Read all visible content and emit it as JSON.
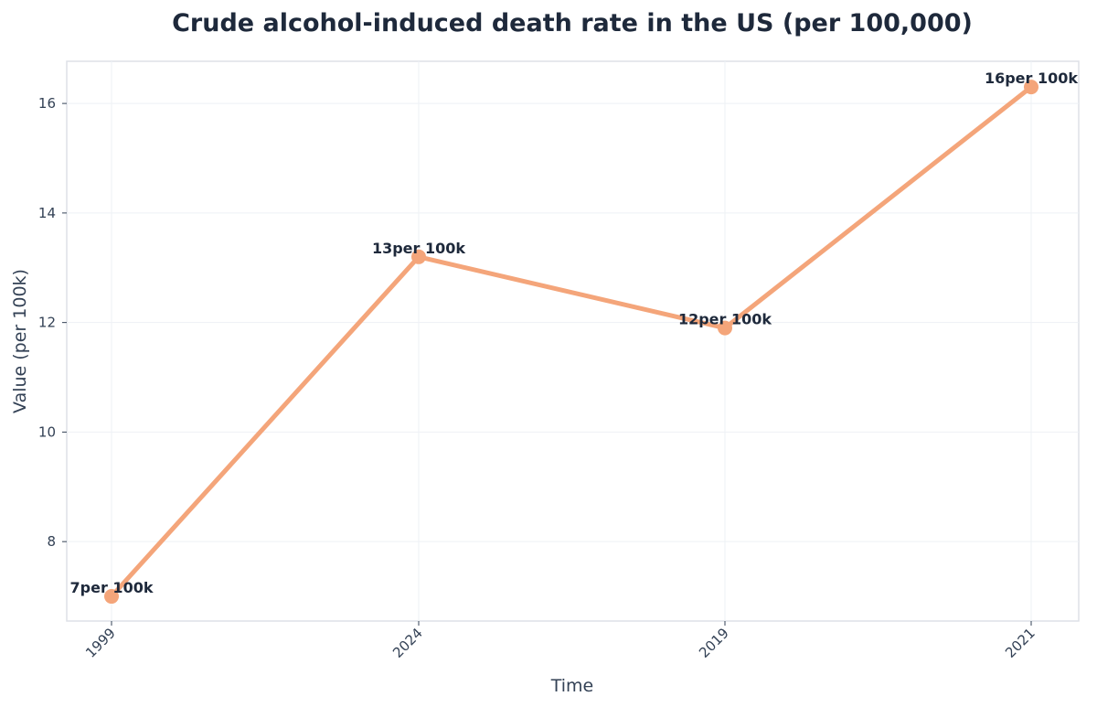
{
  "chart_data": {
    "type": "line",
    "title": "Crude alcohol-induced death rate in the US (per 100,000)",
    "xlabel": "Time",
    "ylabel": "Value (per 100k)",
    "categories": [
      "1999",
      "2024",
      "2019",
      "2021"
    ],
    "series": [
      {
        "values": [
          7.0,
          13.2,
          11.9,
          16.3
        ],
        "labels": [
          "7per 100k",
          "13per 100k",
          "12per 100k",
          "16per 100k"
        ]
      }
    ],
    "y_ticks": [
      8,
      10,
      12,
      14,
      16
    ],
    "y_tick_labels": [
      "8",
      "10",
      "12",
      "14",
      "16"
    ],
    "ylim": [
      6.55,
      16.77
    ],
    "grid": true,
    "legend": "none",
    "line_color": "#f4a57a",
    "marker_color": "#f4a57a",
    "text_color": "#1e293b"
  }
}
